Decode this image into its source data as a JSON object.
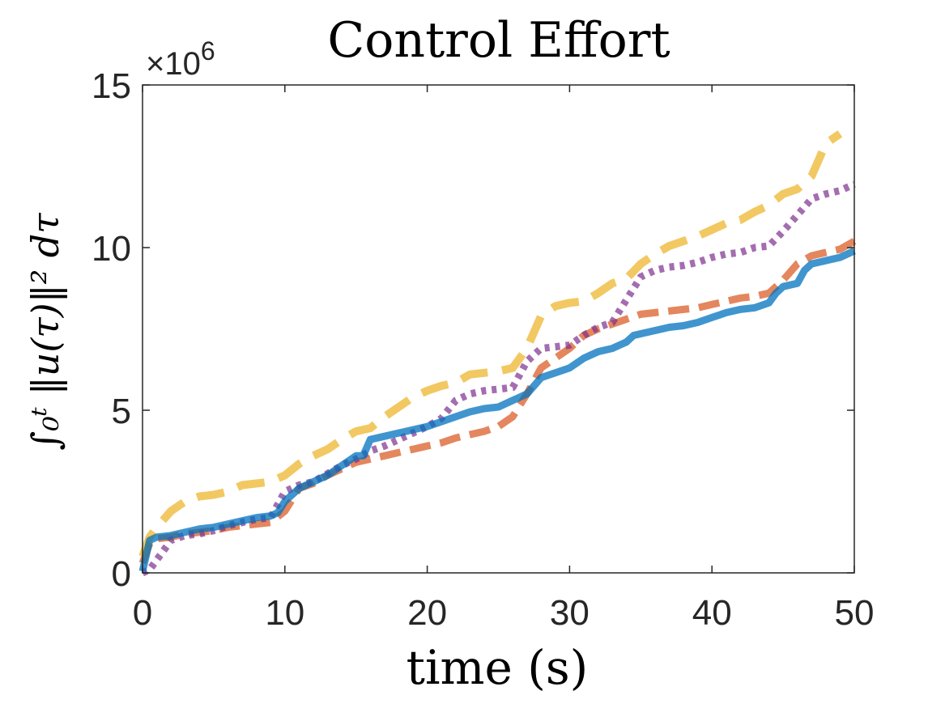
{
  "chart_data": {
    "type": "line",
    "title": "Control Effort",
    "xlabel": "time (s)",
    "ylabel": "∫₀ᵗ ‖u(τ)‖² dτ",
    "exponent_label": "×10",
    "exponent_power": "6",
    "xlim": [
      0,
      50
    ],
    "ylim": [
      0,
      15
    ],
    "xticks": [
      0,
      10,
      20,
      30,
      40,
      50
    ],
    "yticks": [
      0,
      5,
      10,
      15
    ],
    "grid": false,
    "legend": "none",
    "series": [
      {
        "color": "#0072BD",
        "style": "solid",
        "x": [
          0,
          0.5,
          1,
          2,
          3,
          4,
          5,
          6,
          7,
          8,
          9,
          9.5,
          10,
          11,
          12,
          13,
          14,
          15,
          15.5,
          16,
          17,
          18,
          19,
          20,
          21,
          22,
          23,
          24,
          25,
          26,
          27,
          27.5,
          28,
          29,
          30,
          31,
          32,
          33,
          34,
          34.5,
          35,
          36,
          37,
          38,
          39,
          40,
          41,
          42,
          43,
          44,
          44.5,
          45,
          46,
          46.5,
          47,
          48,
          49,
          50
        ],
        "y": [
          0.05,
          1.0,
          1.1,
          1.15,
          1.25,
          1.35,
          1.4,
          1.5,
          1.6,
          1.7,
          1.75,
          1.85,
          2.2,
          2.6,
          2.8,
          3.0,
          3.3,
          3.6,
          3.6,
          4.1,
          4.2,
          4.3,
          4.4,
          4.5,
          4.65,
          4.8,
          4.95,
          5.05,
          5.1,
          5.3,
          5.5,
          5.75,
          6.0,
          6.15,
          6.3,
          6.6,
          6.8,
          6.9,
          7.1,
          7.3,
          7.35,
          7.45,
          7.55,
          7.6,
          7.7,
          7.85,
          8.0,
          8.1,
          8.15,
          8.3,
          8.6,
          8.8,
          8.9,
          9.3,
          9.5,
          9.6,
          9.7,
          9.9
        ]
      },
      {
        "color": "#D95319",
        "style": "dashed",
        "x": [
          0,
          0.5,
          1,
          2,
          3,
          4,
          5,
          6,
          7,
          8,
          9,
          10,
          11,
          12,
          13,
          14,
          15,
          16,
          17,
          18,
          19,
          20,
          21,
          22,
          23,
          24,
          25,
          26,
          27,
          28,
          29,
          30,
          31,
          32,
          33,
          34,
          35,
          36,
          37,
          38,
          39,
          40,
          41,
          42,
          43,
          44,
          45,
          46,
          47,
          48,
          49,
          50
        ],
        "y": [
          0.3,
          0.9,
          1.05,
          1.1,
          1.2,
          1.25,
          1.3,
          1.4,
          1.45,
          1.5,
          1.55,
          1.9,
          2.6,
          2.75,
          3.0,
          3.2,
          3.4,
          3.5,
          3.6,
          3.7,
          3.8,
          3.9,
          4.0,
          4.15,
          4.25,
          4.35,
          4.5,
          4.8,
          5.5,
          6.3,
          6.6,
          6.9,
          7.3,
          7.5,
          7.65,
          7.8,
          7.95,
          8.0,
          8.05,
          8.1,
          8.15,
          8.25,
          8.35,
          8.45,
          8.5,
          8.6,
          9.0,
          9.5,
          9.75,
          9.85,
          9.95,
          10.2
        ]
      },
      {
        "color": "#EDB120",
        "style": "dashed-thick",
        "x": [
          0,
          0.5,
          1,
          2,
          3,
          4,
          5,
          6,
          7,
          8,
          9,
          10,
          11,
          12,
          13,
          14,
          15,
          16,
          17,
          18,
          19,
          20,
          21,
          22,
          23,
          24,
          25,
          26,
          27,
          28,
          29,
          30,
          31,
          32,
          33,
          34,
          35,
          36,
          37,
          38,
          39,
          40,
          41,
          42,
          43,
          44,
          45,
          46,
          47,
          48,
          49
        ],
        "y": [
          0.5,
          1.1,
          1.4,
          1.9,
          2.2,
          2.35,
          2.4,
          2.5,
          2.7,
          2.75,
          2.8,
          3.0,
          3.35,
          3.6,
          3.8,
          4.1,
          4.35,
          4.45,
          4.8,
          5.1,
          5.4,
          5.6,
          5.75,
          5.85,
          6.1,
          6.15,
          6.2,
          6.3,
          6.9,
          7.9,
          8.2,
          8.3,
          8.35,
          8.6,
          8.9,
          9.05,
          9.5,
          9.8,
          10.05,
          10.2,
          10.35,
          10.55,
          10.75,
          10.85,
          11.1,
          11.3,
          11.65,
          11.8,
          12.2,
          13.2,
          13.5
        ]
      },
      {
        "color": "#7E2F8E",
        "style": "dotted",
        "x": [
          0,
          0.5,
          1,
          2,
          3,
          4,
          5,
          6,
          7,
          8,
          9,
          10,
          11,
          12,
          13,
          14,
          15,
          16,
          17,
          18,
          19,
          20,
          21,
          22,
          23,
          24,
          25,
          26,
          27,
          28,
          29,
          30,
          31,
          32,
          33,
          34,
          35,
          36,
          37,
          38,
          39,
          40,
          41,
          42,
          43,
          44,
          45,
          46,
          47,
          48,
          49,
          50
        ],
        "y": [
          0.0,
          0.1,
          0.4,
          1.0,
          1.15,
          1.2,
          1.3,
          1.45,
          1.55,
          1.65,
          1.7,
          2.5,
          2.7,
          2.8,
          3.05,
          3.3,
          3.5,
          3.75,
          3.9,
          4.1,
          4.3,
          4.5,
          4.75,
          5.3,
          5.5,
          5.6,
          5.65,
          5.7,
          6.5,
          6.9,
          6.95,
          7.0,
          7.3,
          7.55,
          7.7,
          8.4,
          9.1,
          9.3,
          9.4,
          9.45,
          9.55,
          9.7,
          9.8,
          9.85,
          10.0,
          10.05,
          10.5,
          11.0,
          11.5,
          11.65,
          11.75,
          11.95
        ]
      }
    ]
  }
}
